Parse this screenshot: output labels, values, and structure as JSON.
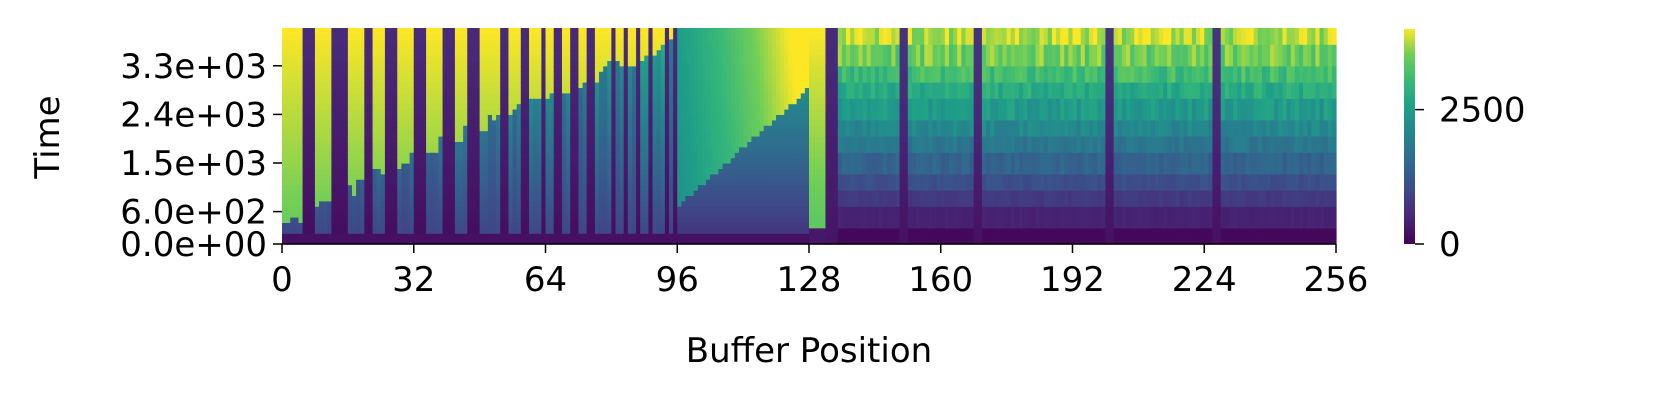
{
  "chart_data": {
    "type": "heatmap",
    "title": "",
    "xlabel": "Buffer Position",
    "ylabel": "Time",
    "xlim": [
      0,
      256
    ],
    "ylim": [
      0,
      4000
    ],
    "x_ticks": [
      0,
      32,
      64,
      96,
      128,
      160,
      192,
      224,
      256
    ],
    "x_tick_labels": [
      "0",
      "32",
      "64",
      "96",
      "128",
      "160",
      "192",
      "224",
      "256"
    ],
    "y_ticks": [
      0,
      600,
      1500,
      2400,
      3300
    ],
    "y_tick_labels": [
      "0.0e+00",
      "6.0e+02",
      "1.5e+03",
      "2.4e+03",
      "3.3e+03"
    ],
    "colormap": "viridis",
    "colorbar": {
      "min": 0,
      "max": 4000,
      "ticks": [
        0,
        2500
      ],
      "tick_labels": [
        "0",
        "2500"
      ]
    },
    "colors": {
      "low": "#440154",
      "mid": "#21918c",
      "high": "#fde725"
    },
    "regions": [
      {
        "x_range": [
          0,
          96
        ],
        "pattern": "vertical stripes of decreasing width; each column jumps from low (~0-600) to high values at staggered times"
      },
      {
        "x_range": [
          96,
          128
        ],
        "pattern": "smooth gradient; value increases with x and with time, peaking near 4000 at x=128"
      },
      {
        "x_range": [
          132,
          135
        ],
        "pattern": "narrow dark (low value) band"
      },
      {
        "x_range": [
          135,
          256
        ],
        "pattern": "noisy stepped columns rising from ~0 at bottom to ~4000 at top, with occasional dark vertical streaks"
      }
    ]
  }
}
